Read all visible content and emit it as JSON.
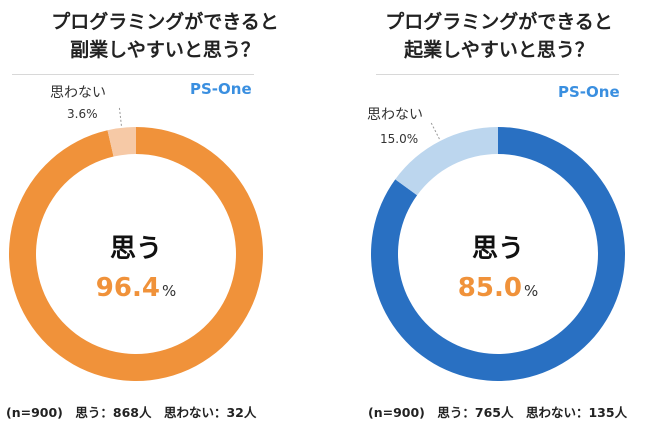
{
  "chart_data": [
    {
      "type": "pie",
      "donut": true,
      "title": "プログラミングができると\n副業しやすいと思う？",
      "title_lines": [
        "プログラミングができると",
        "副業しやすいと思う？"
      ],
      "categories": [
        "思う",
        "思わない"
      ],
      "values": [
        96.4,
        3.6
      ],
      "value_labels": [
        "96.4",
        "3.6%"
      ],
      "unit": "%",
      "colors": [
        "#F0923A",
        "#F6C9A6"
      ],
      "brand": "PS-One",
      "note": "(n=900)　思う：868人　思わない：32人"
    },
    {
      "type": "pie",
      "donut": true,
      "title": "プログラミングができると\n起業しやすいと思う？",
      "title_lines": [
        "プログラミングができると",
        "起業しやすいと思う？"
      ],
      "categories": [
        "思う",
        "思わない"
      ],
      "values": [
        85.0,
        15.0
      ],
      "value_labels": [
        "85.0",
        "15.0%"
      ],
      "unit": "%",
      "colors": [
        "#2970C2",
        "#BCD6EE"
      ],
      "brand": "PS-One",
      "note": "(n=900)　思う：765人　思わない：135人"
    }
  ]
}
